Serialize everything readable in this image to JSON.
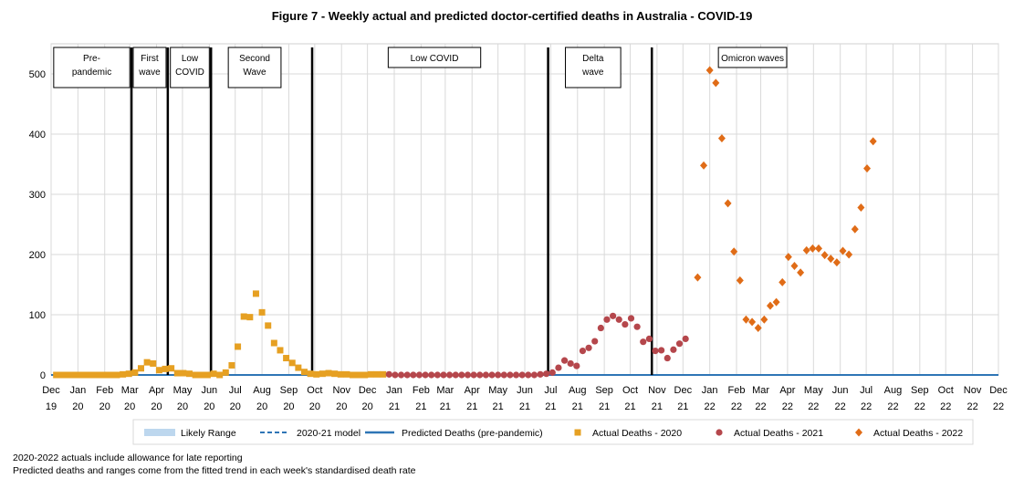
{
  "chart_data": {
    "type": "scatter",
    "title": "Figure 7 - Weekly actual and predicted doctor-certified deaths in Australia - COVID-19",
    "xlabel": "",
    "ylabel": "",
    "x_start": "2019-12-01",
    "x_end": "2022-12-01",
    "ylim": [
      0,
      550
    ],
    "yticks": [
      0,
      100,
      200,
      300,
      400,
      500
    ],
    "grid": true,
    "legend_position": "bottom",
    "x_tick_labels": [
      [
        "Dec",
        "19"
      ],
      [
        "Jan",
        "20"
      ],
      [
        "Feb",
        "20"
      ],
      [
        "Mar",
        "20"
      ],
      [
        "Apr",
        "20"
      ],
      [
        "May",
        "20"
      ],
      [
        "Jun",
        "20"
      ],
      [
        "Jul",
        "20"
      ],
      [
        "Aug",
        "20"
      ],
      [
        "Sep",
        "20"
      ],
      [
        "Oct",
        "20"
      ],
      [
        "Nov",
        "20"
      ],
      [
        "Dec",
        "20"
      ],
      [
        "Jan",
        "21"
      ],
      [
        "Feb",
        "21"
      ],
      [
        "Mar",
        "21"
      ],
      [
        "Apr",
        "21"
      ],
      [
        "May",
        "21"
      ],
      [
        "Jun",
        "21"
      ],
      [
        "Jul",
        "21"
      ],
      [
        "Aug",
        "21"
      ],
      [
        "Sep",
        "21"
      ],
      [
        "Oct",
        "21"
      ],
      [
        "Nov",
        "21"
      ],
      [
        "Dec",
        "21"
      ],
      [
        "Jan",
        "22"
      ],
      [
        "Feb",
        "22"
      ],
      [
        "Mar",
        "22"
      ],
      [
        "Apr",
        "22"
      ],
      [
        "May",
        "22"
      ],
      [
        "Jun",
        "22"
      ],
      [
        "Jul",
        "22"
      ],
      [
        "Aug",
        "22"
      ],
      [
        "Sep",
        "22"
      ],
      [
        "Oct",
        "22"
      ],
      [
        "Nov",
        "22"
      ],
      [
        "Dec",
        "22"
      ]
    ],
    "period_dividers": [
      "2020-03-03",
      "2020-04-14",
      "2020-06-03",
      "2020-09-28",
      "2021-06-28",
      "2021-10-26"
    ],
    "period_labels": [
      {
        "lines": [
          "Pre-",
          "pandemic"
        ],
        "from": "2019-12-04",
        "to": "2020-03-01"
      },
      {
        "lines": [
          "First",
          "wave"
        ],
        "from": "2020-03-05",
        "to": "2020-04-12"
      },
      {
        "lines": [
          "Low",
          "COVID"
        ],
        "from": "2020-04-17",
        "to": "2020-06-01"
      },
      {
        "lines": [
          "Second",
          "Wave"
        ],
        "from": "2020-06-23",
        "to": "2020-08-23"
      },
      {
        "lines": [
          "Low COVID"
        ],
        "from": "2020-12-25",
        "to": "2021-04-11"
      },
      {
        "lines": [
          "Delta",
          "wave"
        ],
        "from": "2021-07-18",
        "to": "2021-09-20"
      },
      {
        "lines": [
          "Omicron waves"
        ],
        "from": "2022-01-11",
        "to": "2022-03-31"
      }
    ],
    "series": [
      {
        "name": "Likely Range",
        "type": "band",
        "color": "#bdd7ee",
        "values": []
      },
      {
        "name": "2020-21 model",
        "type": "dashed-line",
        "color": "#2e75b6",
        "values": []
      },
      {
        "name": "Predicted Deaths (pre-pandemic)",
        "type": "line",
        "color": "#2e75b6",
        "values": [
          [
            "2019-12-01",
            0
          ],
          [
            "2022-12-01",
            0
          ]
        ]
      },
      {
        "name": "Actual Deaths - 2020",
        "type": "square",
        "color": "#e6a022",
        "values": [
          [
            "2019-12-07",
            0
          ],
          [
            "2019-12-14",
            0
          ],
          [
            "2019-12-21",
            0
          ],
          [
            "2019-12-28",
            0
          ],
          [
            "2020-01-04",
            0
          ],
          [
            "2020-01-11",
            0
          ],
          [
            "2020-01-18",
            0
          ],
          [
            "2020-01-25",
            0
          ],
          [
            "2020-02-01",
            0
          ],
          [
            "2020-02-08",
            0
          ],
          [
            "2020-02-15",
            0
          ],
          [
            "2020-02-22",
            1
          ],
          [
            "2020-02-29",
            2
          ],
          [
            "2020-03-07",
            4
          ],
          [
            "2020-03-14",
            11
          ],
          [
            "2020-03-21",
            21
          ],
          [
            "2020-03-28",
            19
          ],
          [
            "2020-04-04",
            8
          ],
          [
            "2020-04-11",
            10
          ],
          [
            "2020-04-18",
            11
          ],
          [
            "2020-04-25",
            3
          ],
          [
            "2020-05-02",
            3
          ],
          [
            "2020-05-09",
            2
          ],
          [
            "2020-05-16",
            0
          ],
          [
            "2020-05-23",
            0
          ],
          [
            "2020-05-30",
            0
          ],
          [
            "2020-06-06",
            2
          ],
          [
            "2020-06-13",
            0
          ],
          [
            "2020-06-20",
            4
          ],
          [
            "2020-06-27",
            16
          ],
          [
            "2020-07-04",
            47
          ],
          [
            "2020-07-11",
            97
          ],
          [
            "2020-07-18",
            96
          ],
          [
            "2020-07-25",
            135
          ],
          [
            "2020-08-01",
            104
          ],
          [
            "2020-08-08",
            82
          ],
          [
            "2020-08-15",
            53
          ],
          [
            "2020-08-22",
            41
          ],
          [
            "2020-08-29",
            28
          ],
          [
            "2020-09-05",
            20
          ],
          [
            "2020-09-12",
            12
          ],
          [
            "2020-09-19",
            5
          ],
          [
            "2020-09-26",
            2
          ],
          [
            "2020-10-03",
            1
          ],
          [
            "2020-10-10",
            2
          ],
          [
            "2020-10-17",
            3
          ],
          [
            "2020-10-24",
            2
          ],
          [
            "2020-10-31",
            1
          ],
          [
            "2020-11-07",
            1
          ],
          [
            "2020-11-14",
            0
          ],
          [
            "2020-11-21",
            0
          ],
          [
            "2020-11-28",
            0
          ],
          [
            "2020-12-05",
            1
          ],
          [
            "2020-12-12",
            1
          ],
          [
            "2020-12-19",
            1
          ]
        ]
      },
      {
        "name": "Actual Deaths - 2021",
        "type": "circle",
        "color": "#b5474c",
        "values": [
          [
            "2020-12-26",
            1
          ],
          [
            "2021-01-02",
            0
          ],
          [
            "2021-01-09",
            0
          ],
          [
            "2021-01-16",
            0
          ],
          [
            "2021-01-23",
            0
          ],
          [
            "2021-01-30",
            0
          ],
          [
            "2021-02-06",
            0
          ],
          [
            "2021-02-13",
            0
          ],
          [
            "2021-02-20",
            0
          ],
          [
            "2021-02-27",
            0
          ],
          [
            "2021-03-06",
            0
          ],
          [
            "2021-03-13",
            0
          ],
          [
            "2021-03-20",
            0
          ],
          [
            "2021-03-27",
            0
          ],
          [
            "2021-04-03",
            0
          ],
          [
            "2021-04-10",
            0
          ],
          [
            "2021-04-17",
            0
          ],
          [
            "2021-04-24",
            0
          ],
          [
            "2021-05-01",
            0
          ],
          [
            "2021-05-08",
            0
          ],
          [
            "2021-05-15",
            0
          ],
          [
            "2021-05-22",
            0
          ],
          [
            "2021-05-29",
            0
          ],
          [
            "2021-06-05",
            0
          ],
          [
            "2021-06-12",
            0
          ],
          [
            "2021-06-19",
            1
          ],
          [
            "2021-06-26",
            2
          ],
          [
            "2021-07-03",
            4
          ],
          [
            "2021-07-10",
            12
          ],
          [
            "2021-07-17",
            24
          ],
          [
            "2021-07-24",
            19
          ],
          [
            "2021-07-31",
            15
          ],
          [
            "2021-08-07",
            40
          ],
          [
            "2021-08-14",
            45
          ],
          [
            "2021-08-21",
            56
          ],
          [
            "2021-08-28",
            78
          ],
          [
            "2021-09-04",
            92
          ],
          [
            "2021-09-11",
            98
          ],
          [
            "2021-09-18",
            92
          ],
          [
            "2021-09-25",
            84
          ],
          [
            "2021-10-02",
            94
          ],
          [
            "2021-10-09",
            80
          ],
          [
            "2021-10-16",
            55
          ],
          [
            "2021-10-23",
            60
          ],
          [
            "2021-10-30",
            40
          ],
          [
            "2021-11-06",
            41
          ],
          [
            "2021-11-13",
            28
          ],
          [
            "2021-11-20",
            42
          ],
          [
            "2021-11-27",
            52
          ],
          [
            "2021-12-04",
            60
          ]
        ]
      },
      {
        "name": "Actual Deaths - 2022",
        "type": "diamond",
        "color": "#e06c17",
        "values": [
          [
            "2021-12-18",
            162
          ],
          [
            "2021-12-25",
            348
          ],
          [
            "2022-01-01",
            506
          ],
          [
            "2022-01-08",
            485
          ],
          [
            "2022-01-15",
            393
          ],
          [
            "2022-01-22",
            285
          ],
          [
            "2022-01-29",
            205
          ],
          [
            "2022-02-05",
            157
          ],
          [
            "2022-02-12",
            92
          ],
          [
            "2022-02-19",
            88
          ],
          [
            "2022-02-26",
            78
          ],
          [
            "2022-03-05",
            92
          ],
          [
            "2022-03-12",
            115
          ],
          [
            "2022-03-19",
            121
          ],
          [
            "2022-03-26",
            154
          ],
          [
            "2022-04-02",
            196
          ],
          [
            "2022-04-09",
            181
          ],
          [
            "2022-04-16",
            170
          ],
          [
            "2022-04-23",
            207
          ],
          [
            "2022-04-30",
            210
          ],
          [
            "2022-05-07",
            210
          ],
          [
            "2022-05-14",
            199
          ],
          [
            "2022-05-21",
            193
          ],
          [
            "2022-05-28",
            187
          ],
          [
            "2022-06-04",
            206
          ],
          [
            "2022-06-11",
            200
          ],
          [
            "2022-06-18",
            242
          ],
          [
            "2022-06-25",
            278
          ],
          [
            "2022-07-02",
            343
          ],
          [
            "2022-07-09",
            388
          ]
        ]
      }
    ]
  },
  "notes": [
    "2020-2022 actuals include allowance for late reporting",
    "Predicted deaths and ranges come from the fitted trend in each week's standardised death rate"
  ]
}
